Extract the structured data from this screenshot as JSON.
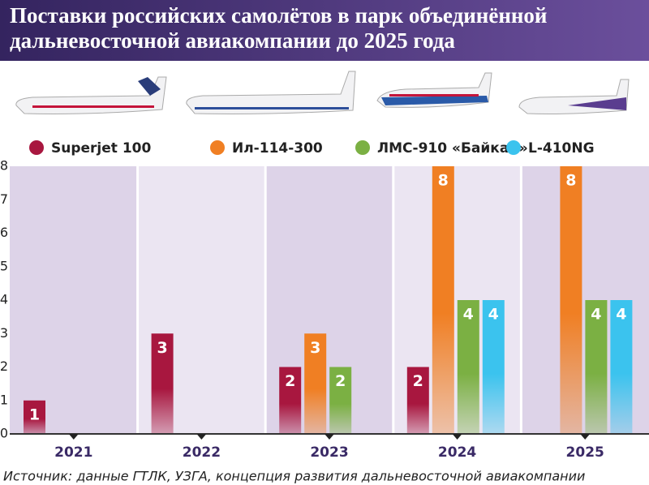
{
  "chart_data": {
    "type": "bar",
    "title": "Поставки российских самолётов в парк объединённой дальневосточной авиакомпании до 2025 года",
    "categories": [
      "2021",
      "2022",
      "2023",
      "2024",
      "2025"
    ],
    "series": [
      {
        "name": "Superjet 100",
        "color": "#a8173f",
        "values": [
          1,
          3,
          2,
          2,
          null
        ]
      },
      {
        "name": "Ил-114-300",
        "color": "#f07f23",
        "values": [
          null,
          null,
          3,
          8,
          8
        ]
      },
      {
        "name": "ЛМС-910 «Байкал»",
        "color": "#7bb043",
        "values": [
          null,
          null,
          2,
          4,
          4
        ]
      },
      {
        "name": "L-410NG",
        "color": "#3bc3ee",
        "values": [
          null,
          null,
          null,
          4,
          4
        ]
      }
    ],
    "ylim": [
      0,
      8
    ],
    "yticks": [
      0,
      1,
      2,
      3,
      4,
      5,
      6,
      7,
      8
    ],
    "source": "Источник: данные ГТЛК, УЗГА, концепция развития дальневосточной авиакомпании"
  }
}
